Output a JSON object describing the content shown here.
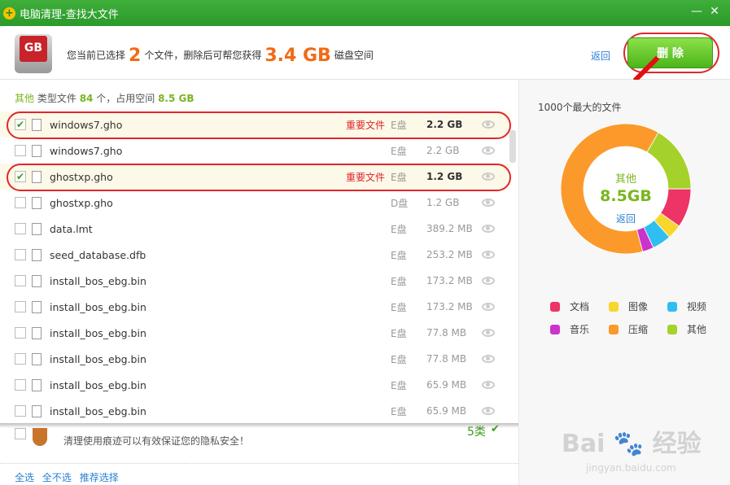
{
  "window": {
    "title": "电脑清理-查找大文件",
    "minimize": "—",
    "close": "✕"
  },
  "header": {
    "badge": "GB",
    "pre": "您当前已选择",
    "count": "2",
    "mid": "个文件，删除后可帮您获得",
    "size": "3.4 GB",
    "post": "磁盘空间",
    "back": "返回",
    "delete": "删 除"
  },
  "typeinfo": {
    "type": "其他",
    "t1": "类型文件",
    "count": "84",
    "t2": "个，占用空间",
    "size": "8.5 GB"
  },
  "files": [
    {
      "name": "windows7.gho",
      "tag": "重要文件",
      "drive": "E盘",
      "size": "2.2 GB",
      "checked": true
    },
    {
      "name": "windows7.gho",
      "tag": "",
      "drive": "E盘",
      "size": "2.2 GB",
      "checked": false
    },
    {
      "name": "ghostxp.gho",
      "tag": "重要文件",
      "drive": "E盘",
      "size": "1.2 GB",
      "checked": true
    },
    {
      "name": "ghostxp.gho",
      "tag": "",
      "drive": "D盘",
      "size": "1.2 GB",
      "checked": false
    },
    {
      "name": "data.lmt",
      "tag": "",
      "drive": "E盘",
      "size": "389.2 MB",
      "checked": false
    },
    {
      "name": "seed_database.dfb",
      "tag": "",
      "drive": "E盘",
      "size": "253.2 MB",
      "checked": false
    },
    {
      "name": "install_bos_ebg.bin",
      "tag": "",
      "drive": "E盘",
      "size": "173.2 MB",
      "checked": false
    },
    {
      "name": "install_bos_ebg.bin",
      "tag": "",
      "drive": "E盘",
      "size": "173.2 MB",
      "checked": false
    },
    {
      "name": "install_bos_ebg.bin",
      "tag": "",
      "drive": "E盘",
      "size": "77.8 MB",
      "checked": false
    },
    {
      "name": "install_bos_ebg.bin",
      "tag": "",
      "drive": "E盘",
      "size": "77.8 MB",
      "checked": false
    },
    {
      "name": "install_bos_ebg.bin",
      "tag": "",
      "drive": "E盘",
      "size": "65.9 MB",
      "checked": false
    },
    {
      "name": "install_bos_ebg.bin",
      "tag": "",
      "drive": "E盘",
      "size": "65.9 MB",
      "checked": false
    }
  ],
  "privacy": {
    "desc": "清理使用痕迹可以有效保证您的隐私安全！",
    "count": "5类"
  },
  "footer": {
    "select_all": "全选",
    "select_none": "全不选",
    "recommend": "推荐选择"
  },
  "panel": {
    "title": "1000个最大的文件",
    "center_label": "其他",
    "center_value": "8.5GB",
    "back": "返回"
  },
  "chart_data": {
    "type": "pie",
    "segments": [
      {
        "name": "其他",
        "color": "#a5d22a",
        "fraction": 0.167
      },
      {
        "name": "文档",
        "color": "#ee3366",
        "fraction": 0.097
      },
      {
        "name": "图像",
        "color": "#f7d62e",
        "fraction": 0.036
      },
      {
        "name": "视频",
        "color": "#2ebff0",
        "fraction": 0.047
      },
      {
        "name": "音乐",
        "color": "#cc33cc",
        "fraction": 0.028
      },
      {
        "name": "压缩",
        "color": "#fb9a2a",
        "fraction": 0.625
      }
    ],
    "legend": [
      {
        "name": "文档",
        "color": "#ee3366"
      },
      {
        "name": "图像",
        "color": "#f7d62e"
      },
      {
        "name": "视频",
        "color": "#2ebff0"
      },
      {
        "name": "音乐",
        "color": "#cc33cc"
      },
      {
        "name": "压缩",
        "color": "#fb9a2a"
      },
      {
        "name": "其他",
        "color": "#a5d22a"
      }
    ]
  },
  "watermark": {
    "brand": "Bai 经验",
    "url": "jingyan.baidu.com"
  }
}
